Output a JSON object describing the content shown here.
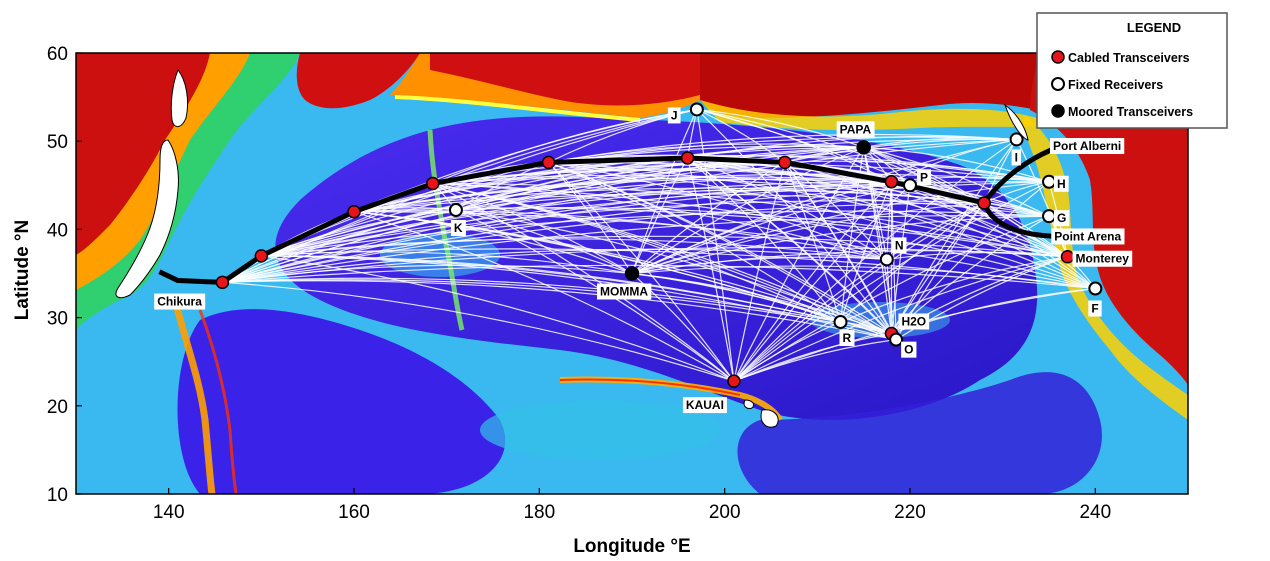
{
  "axes": {
    "xlabel": "Longitude °E",
    "ylabel": "Latitude °N",
    "xlim": [
      130,
      250
    ],
    "ylim": [
      10,
      60
    ],
    "xticks": [
      140,
      160,
      180,
      200,
      220,
      240
    ],
    "yticks": [
      10,
      20,
      30,
      40,
      50,
      60
    ]
  },
  "legend": {
    "title": "LEGEND",
    "placement": "top-right",
    "items": [
      {
        "label": "Cabled Transceivers",
        "marker": "red"
      },
      {
        "label": "Fixed Receivers",
        "marker": "open"
      },
      {
        "label": "Moored Transceivers",
        "marker": "black"
      }
    ]
  },
  "colors": {
    "cabled": "#e8141c",
    "moored": "#000000",
    "fixed": "#ffffff",
    "deep_ocean": "#3b22e0",
    "land": "#ffffff",
    "paths": "#ffffff",
    "cable": "#000000"
  },
  "stations": {
    "cabled": [
      {
        "lon": 145.8,
        "lat": 34.0,
        "label": ""
      },
      {
        "lon": 150.0,
        "lat": 37.0,
        "label": ""
      },
      {
        "lon": 160.0,
        "lat": 42.0,
        "label": ""
      },
      {
        "lon": 168.5,
        "lat": 45.2,
        "label": ""
      },
      {
        "lon": 181.0,
        "lat": 47.6,
        "label": ""
      },
      {
        "lon": 196.0,
        "lat": 48.1,
        "label": ""
      },
      {
        "lon": 206.5,
        "lat": 47.6,
        "label": ""
      },
      {
        "lon": 218.0,
        "lat": 45.4,
        "label": ""
      },
      {
        "lon": 228.0,
        "lat": 43.0,
        "label": ""
      },
      {
        "lon": 237.0,
        "lat": 36.9,
        "label": "Monterey"
      },
      {
        "lon": 218.0,
        "lat": 28.2,
        "label": "H2O"
      },
      {
        "lon": 201.0,
        "lat": 22.8,
        "label": "KAUAI"
      }
    ],
    "fixed": [
      {
        "lon": 197.0,
        "lat": 53.6,
        "label": "J"
      },
      {
        "lon": 171.0,
        "lat": 42.2,
        "label": "K"
      },
      {
        "lon": 220.0,
        "lat": 45.0,
        "label": "P"
      },
      {
        "lon": 231.5,
        "lat": 50.2,
        "label": "I"
      },
      {
        "lon": 235.0,
        "lat": 45.4,
        "label": "H"
      },
      {
        "lon": 235.0,
        "lat": 41.5,
        "label": "G"
      },
      {
        "lon": 217.5,
        "lat": 36.6,
        "label": "N"
      },
      {
        "lon": 240.0,
        "lat": 33.3,
        "label": "F"
      },
      {
        "lon": 212.5,
        "lat": 29.5,
        "label": "R"
      },
      {
        "lon": 218.5,
        "lat": 27.5,
        "label": "O"
      }
    ],
    "moored": [
      {
        "lon": 215.0,
        "lat": 49.3,
        "label": "PAPA"
      },
      {
        "lon": 190.0,
        "lat": 35.0,
        "label": "MOMMA"
      }
    ],
    "places": [
      {
        "lon": 142.0,
        "lat": 32.5,
        "label": "Chikura"
      },
      {
        "lon": 235.0,
        "lat": 49.0,
        "label": "Port Alberni"
      },
      {
        "lon": 236.0,
        "lat": 39.2,
        "label": "Point Arena"
      }
    ]
  }
}
